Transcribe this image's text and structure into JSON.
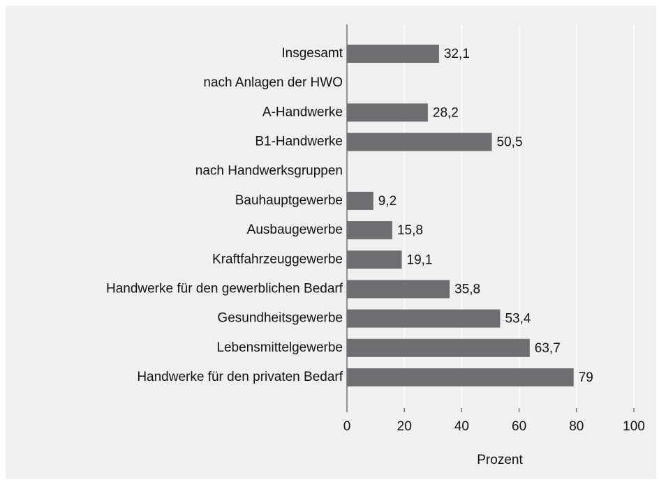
{
  "chart_data": {
    "type": "barh",
    "categories": [
      "Insgesamt",
      "nach Anlagen der HWO",
      "A-Handwerke",
      "B1-Handwerke",
      "nach Handwerksgruppen",
      "Bauhauptgewerbe",
      "Ausbaugewerbe",
      "Kraftfahrzeuggewerbe",
      "Handwerke für den gewerblichen Bedarf",
      "Gesundheitsgewerbe",
      "Lebensmittelgewerbe",
      "Handwerke für den privaten Bedarf"
    ],
    "values": [
      32.1,
      null,
      28.2,
      50.5,
      null,
      9.2,
      15.8,
      19.1,
      35.8,
      53.4,
      63.7,
      79
    ],
    "value_labels": [
      "32,1",
      null,
      "28,2",
      "50,5",
      null,
      "9,2",
      "15,8",
      "19,1",
      "35,8",
      "53,4",
      "63,7",
      "79"
    ],
    "color": "#6d6e71",
    "xlabel": "Prozent",
    "xlim": [
      0,
      100
    ],
    "xticks": [
      0,
      20,
      40,
      60,
      80,
      100
    ],
    "grid": true
  }
}
